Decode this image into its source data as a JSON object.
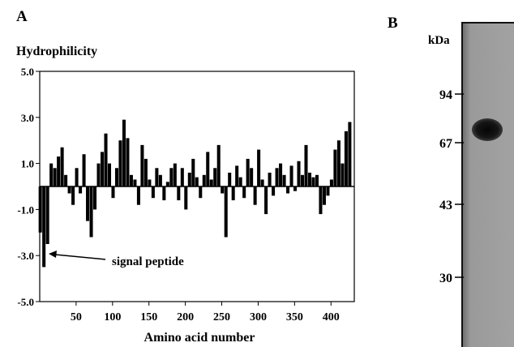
{
  "chart_data": {
    "type": "bar",
    "panel": "A",
    "ylabel": "Hydrophilicity",
    "xlabel": "Amino acid number",
    "x": [
      1,
      6,
      11,
      16,
      21,
      26,
      31,
      36,
      41,
      46,
      51,
      56,
      61,
      66,
      71,
      76,
      81,
      86,
      91,
      96,
      101,
      106,
      111,
      116,
      121,
      126,
      131,
      136,
      141,
      146,
      151,
      156,
      161,
      166,
      171,
      176,
      181,
      186,
      191,
      196,
      201,
      206,
      211,
      216,
      221,
      226,
      231,
      236,
      241,
      246,
      251,
      256,
      261,
      266,
      271,
      276,
      281,
      286,
      291,
      296,
      301,
      306,
      311,
      316,
      321,
      326,
      331,
      336,
      341,
      346,
      351,
      356,
      361,
      366,
      371,
      376,
      381,
      386,
      391,
      396,
      401,
      406,
      411,
      416,
      421,
      426
    ],
    "values": [
      -2.0,
      -3.5,
      -2.5,
      1.0,
      0.8,
      1.3,
      1.7,
      0.5,
      -0.3,
      -0.8,
      0.8,
      -0.3,
      1.4,
      -1.5,
      -2.2,
      -1.0,
      1.0,
      1.5,
      2.3,
      1.0,
      -0.5,
      0.8,
      2.0,
      2.9,
      2.1,
      0.5,
      0.3,
      -0.8,
      1.8,
      1.2,
      0.3,
      -0.5,
      0.8,
      0.5,
      -0.6,
      0.2,
      0.8,
      1.0,
      -0.6,
      0.8,
      -1.0,
      0.6,
      1.2,
      0.4,
      -0.5,
      0.5,
      1.5,
      0.3,
      0.8,
      1.8,
      -0.3,
      -2.2,
      0.6,
      -0.6,
      0.9,
      0.4,
      -0.5,
      1.2,
      0.8,
      -0.8,
      1.6,
      0.3,
      -1.2,
      0.6,
      -0.4,
      0.8,
      1.0,
      0.5,
      -0.3,
      0.9,
      -0.2,
      1.1,
      0.5,
      1.8,
      0.6,
      0.4,
      0.5,
      -1.2,
      -0.8,
      -0.4,
      0.3,
      1.6,
      2.0,
      1.0,
      2.4,
      2.8
    ],
    "color": "#000000",
    "xlim": [
      0,
      432
    ],
    "ylim": [
      -5,
      5
    ],
    "xticks": [
      50,
      100,
      150,
      200,
      250,
      300,
      350,
      400
    ],
    "yticks": [
      {
        "value": 5,
        "label": "5.0"
      },
      {
        "value": 3,
        "label": "3.0"
      },
      {
        "value": 1,
        "label": "1.0"
      },
      {
        "value": -1,
        "label": "-1.0"
      },
      {
        "value": -3,
        "label": "-3.0"
      },
      {
        "value": -5,
        "label": "-5.0"
      }
    ],
    "annotation": "signal peptide"
  },
  "blot": {
    "panel": "B",
    "unit": "kDa",
    "markers": [
      "94",
      "67",
      "43",
      "30"
    ]
  }
}
